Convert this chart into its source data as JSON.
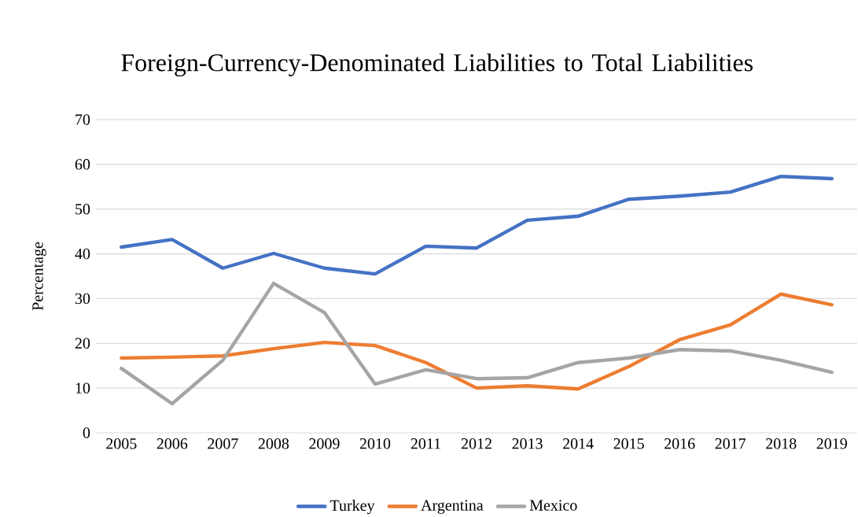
{
  "chart_data": {
    "type": "line",
    "title": "Foreign-Currency-Denominated Liabilities to Total Liabilities",
    "ylabel": "Percentage",
    "categories": [
      "2005",
      "2006",
      "2007",
      "2008",
      "2009",
      "2010",
      "2011",
      "2012",
      "2013",
      "2014",
      "2015",
      "2016",
      "2017",
      "2018",
      "2019"
    ],
    "series": [
      {
        "name": "Turkey",
        "color": "#4472c4",
        "values": [
          41.5,
          43.2,
          36.8,
          40.1,
          36.8,
          35.5,
          41.7,
          41.3,
          47.5,
          48.4,
          52.2,
          52.9,
          53.8,
          57.3,
          56.8
        ]
      },
      {
        "name": "Argentina",
        "color": "#ed7d31",
        "values": [
          16.7,
          16.9,
          17.2,
          18.8,
          20.2,
          19.5,
          15.7,
          10.0,
          10.5,
          9.8,
          14.8,
          20.8,
          24.1,
          31.0,
          28.6
        ]
      },
      {
        "name": "Mexico",
        "color": "#a5a5a5",
        "values": [
          14.4,
          6.5,
          16.2,
          33.4,
          26.9,
          10.9,
          14.1,
          12.1,
          12.3,
          15.7,
          16.7,
          18.6,
          18.3,
          16.2,
          13.5
        ]
      }
    ],
    "ylim": [
      0,
      70
    ],
    "yticks": [
      0,
      10,
      20,
      30,
      40,
      50,
      60,
      70
    ],
    "grid": "y",
    "legend": "bottom",
    "marker": "none",
    "line_style": "solid"
  }
}
